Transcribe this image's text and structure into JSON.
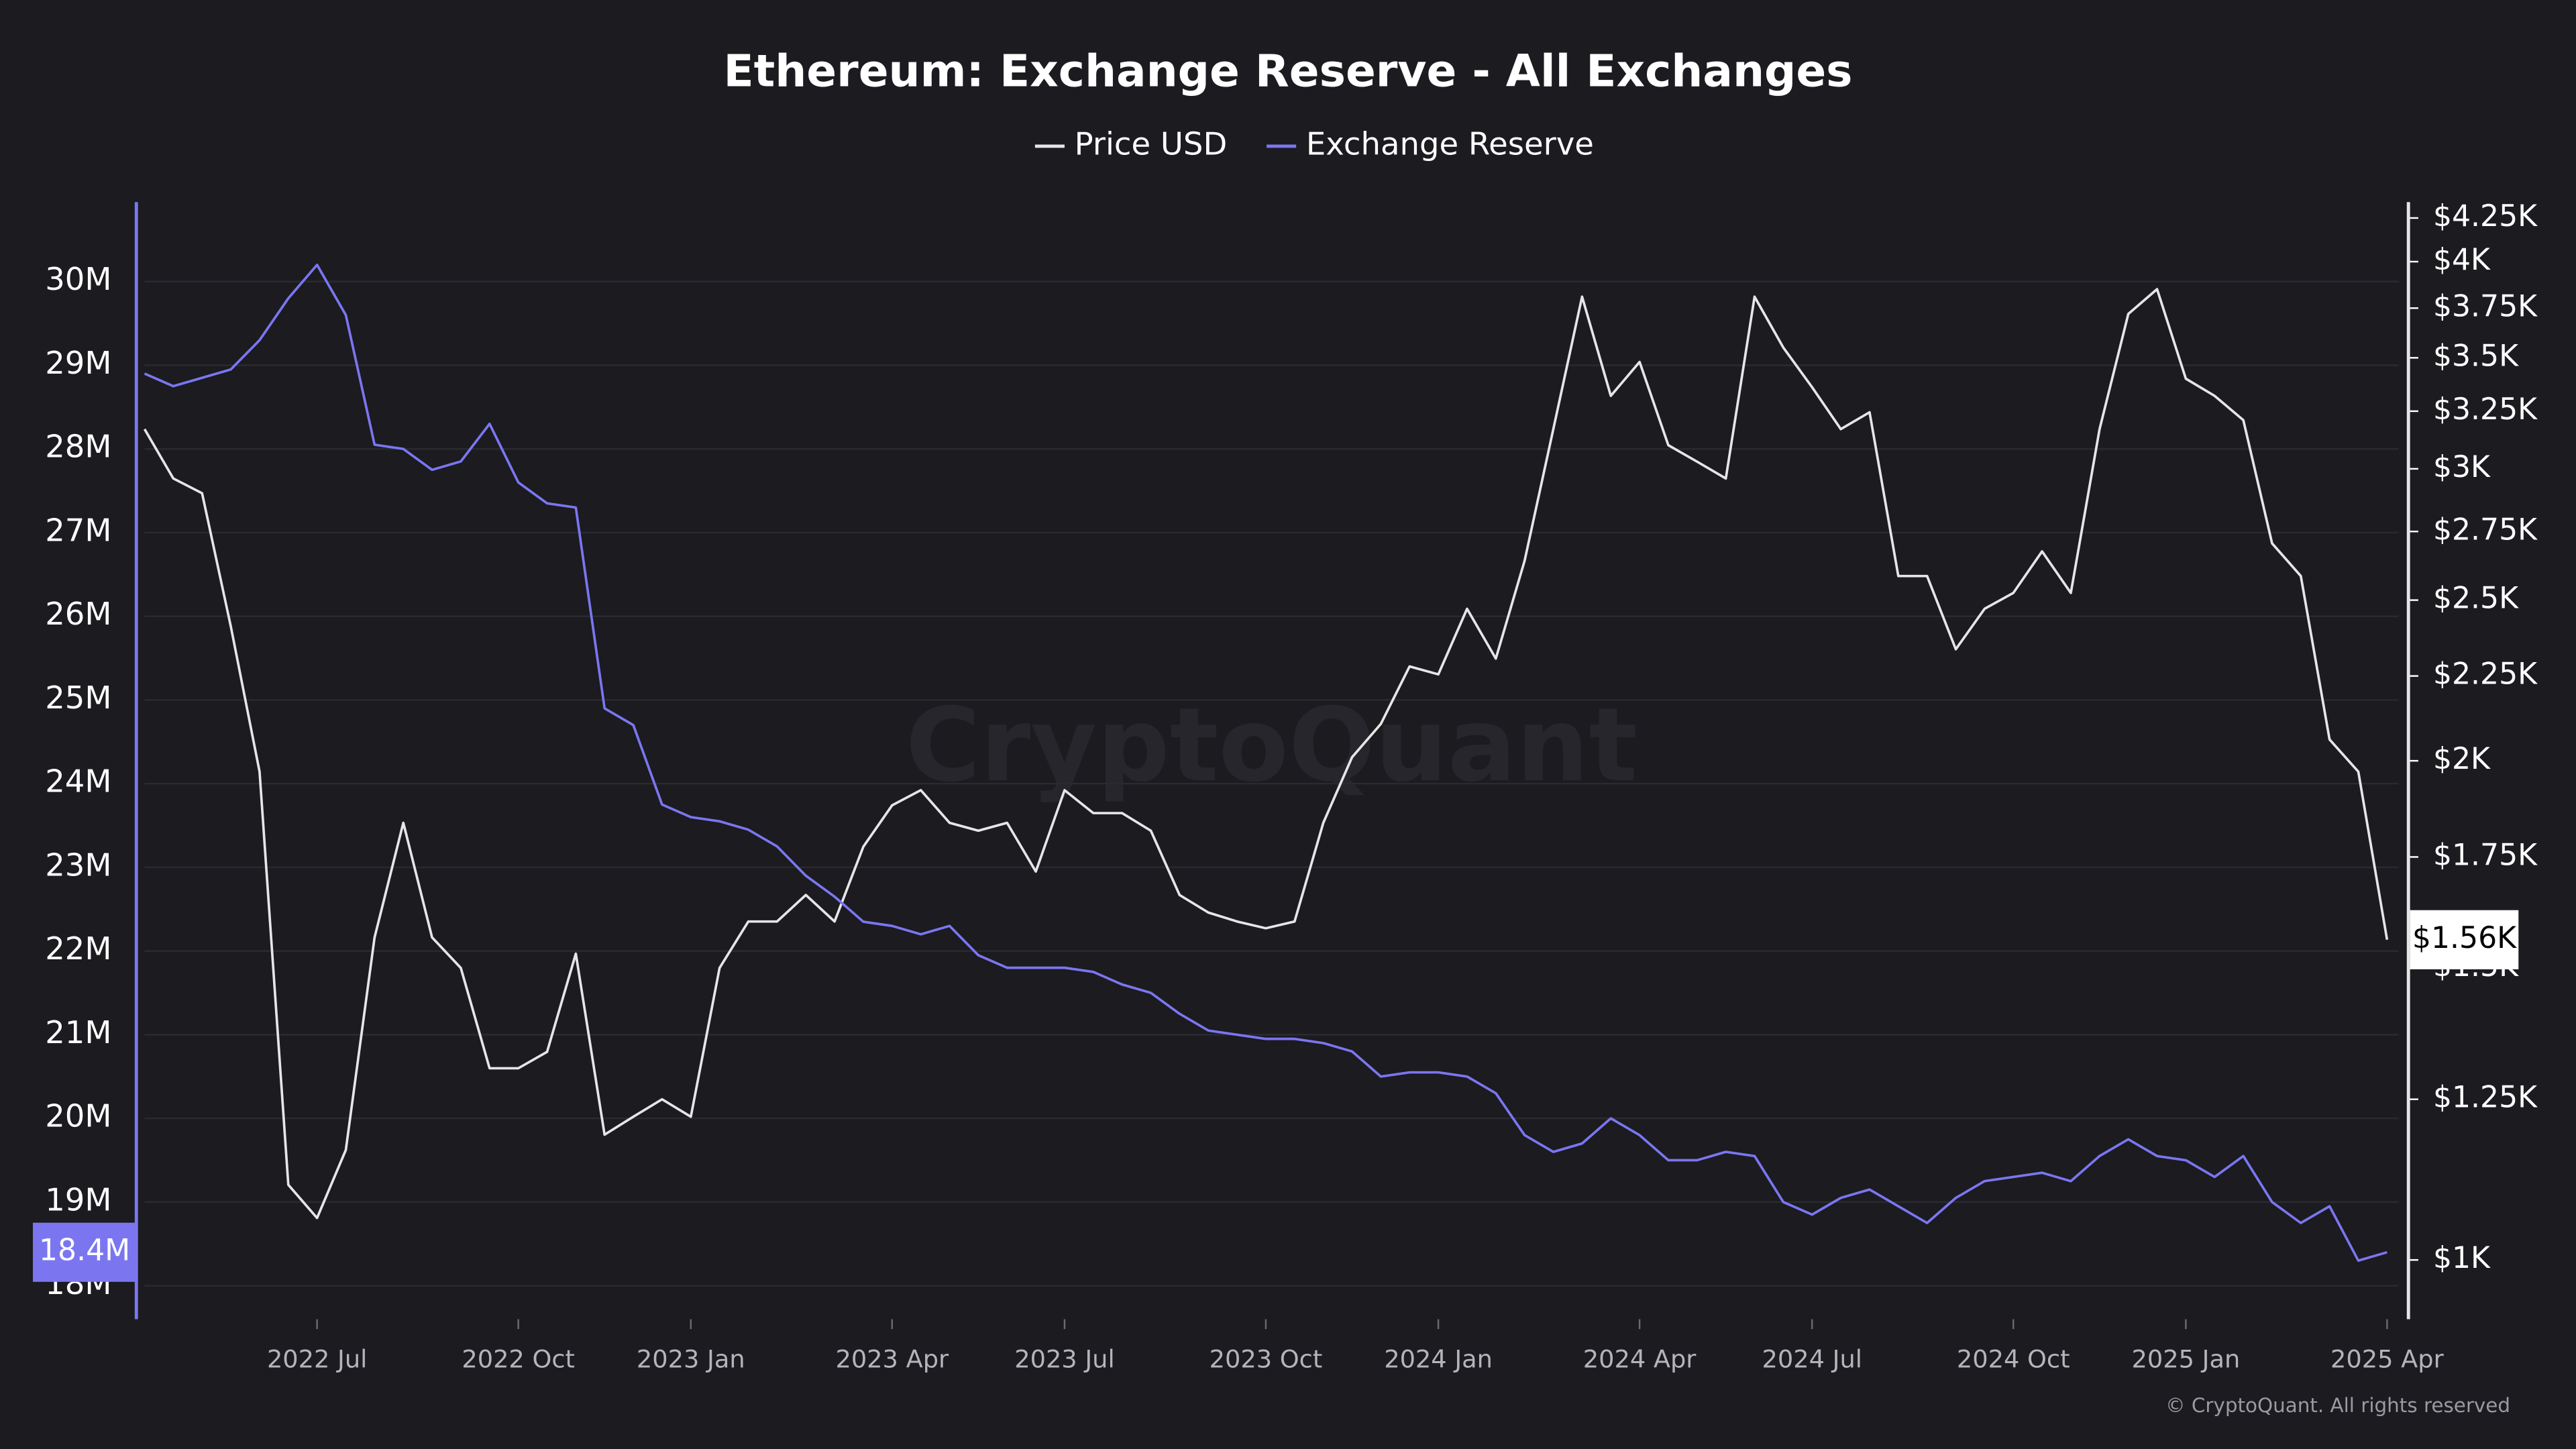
{
  "chart_data": {
    "type": "line",
    "title": "Ethereum: Exchange Reserve - All Exchanges",
    "watermark": "CryptoQuant",
    "credit": "© CryptoQuant. All rights reserved",
    "categories": [
      null,
      null,
      null,
      null,
      null,
      null,
      "2022 Jul",
      null,
      null,
      null,
      null,
      null,
      null,
      "2022 Oct",
      null,
      null,
      null,
      null,
      null,
      "2023 Jan",
      null,
      null,
      null,
      null,
      null,
      null,
      "2023 Apr",
      null,
      null,
      null,
      null,
      null,
      "2023 Jul",
      null,
      null,
      null,
      null,
      null,
      null,
      "2023 Oct",
      null,
      null,
      null,
      null,
      null,
      "2024 Jan",
      null,
      null,
      null,
      null,
      null,
      null,
      "2024 Apr",
      null,
      null,
      null,
      null,
      null,
      "2024 Jul",
      null,
      null,
      null,
      null,
      null,
      null,
      "2024 Oct",
      null,
      null,
      null,
      null,
      null,
      "2025 Jan",
      null,
      null,
      null,
      null,
      null,
      null,
      "2025 Apr"
    ],
    "series": [
      {
        "name": "Price USD",
        "color": "#e6e6e6",
        "axis": "y2",
        "values": [
          3170,
          2960,
          2900,
          2410,
          1970,
          1110,
          1060,
          1165,
          1565,
          1835,
          1565,
          1500,
          1305,
          1305,
          1335,
          1530,
          1190,
          1220,
          1250,
          1220,
          1500,
          1600,
          1600,
          1660,
          1600,
          1775,
          1880,
          1920,
          1835,
          1815,
          1835,
          1715,
          1920,
          1860,
          1860,
          1815,
          1660,
          1620,
          1600,
          1585,
          1600,
          1835,
          2010,
          2105,
          2280,
          2255,
          2470,
          2305,
          2640,
          3170,
          3810,
          3320,
          3480,
          3100,
          3030,
          2960,
          3810,
          3550,
          3360,
          3170,
          3245,
          2585,
          2585,
          2335,
          2470,
          2525,
          2675,
          2525,
          3170,
          3720,
          3850,
          3400,
          3320,
          3210,
          2705,
          2585,
          2060,
          1970,
          1560
        ],
        "value_labels": [
          null,
          null,
          null,
          null,
          null,
          null,
          null,
          null,
          null,
          null,
          null,
          null,
          null,
          null,
          null,
          null,
          null,
          null,
          null,
          null,
          null,
          null,
          null,
          null,
          null,
          null,
          null,
          null,
          null,
          null,
          null,
          null,
          null,
          null,
          null,
          null,
          null,
          null,
          null,
          null,
          null,
          null,
          null,
          null,
          null,
          null,
          null,
          null,
          null,
          null,
          null,
          null,
          null,
          null,
          null,
          null,
          null,
          null,
          null,
          null,
          null,
          null,
          null,
          null,
          null,
          null,
          null,
          null,
          null,
          null,
          null,
          null,
          null,
          null,
          null,
          null,
          null,
          null,
          "$1.56K"
        ]
      },
      {
        "name": "Exchange Reserve",
        "color": "#7b76f0",
        "axis": "y",
        "values": [
          28900000,
          28750000,
          28850000,
          28950000,
          29300000,
          29800000,
          30200000,
          29600000,
          28050000,
          28000000,
          27750000,
          27850000,
          28300000,
          27600000,
          27350000,
          27300000,
          24900000,
          24700000,
          23750000,
          23600000,
          23550000,
          23450000,
          23250000,
          22900000,
          22650000,
          22350000,
          22300000,
          22200000,
          22300000,
          21950000,
          21800000,
          21800000,
          21800000,
          21750000,
          21600000,
          21500000,
          21250000,
          21050000,
          21000000,
          20950000,
          20950000,
          20900000,
          20800000,
          20500000,
          20550000,
          20550000,
          20500000,
          20300000,
          19800000,
          19600000,
          19700000,
          20000000,
          19800000,
          19500000,
          19500000,
          19600000,
          19550000,
          19000000,
          18850000,
          19050000,
          19150000,
          18950000,
          18750000,
          19050000,
          19250000,
          19300000,
          19350000,
          19250000,
          19550000,
          19750000,
          19550000,
          19500000,
          19300000,
          19550000,
          19000000,
          18750000,
          18950000,
          18300000,
          18400000
        ],
        "value_labels": [
          null,
          null,
          null,
          null,
          null,
          null,
          null,
          null,
          null,
          null,
          null,
          null,
          null,
          null,
          null,
          null,
          null,
          null,
          null,
          null,
          null,
          null,
          null,
          null,
          null,
          null,
          null,
          null,
          null,
          null,
          null,
          null,
          null,
          null,
          null,
          null,
          null,
          null,
          null,
          null,
          null,
          null,
          null,
          null,
          null,
          null,
          null,
          null,
          null,
          null,
          null,
          null,
          null,
          null,
          null,
          null,
          null,
          null,
          null,
          null,
          null,
          null,
          null,
          null,
          null,
          null,
          null,
          null,
          null,
          null,
          null,
          null,
          null,
          null,
          null,
          null,
          null,
          null,
          "18.4M"
        ]
      }
    ],
    "ylim": [
      17600000,
      30950000
    ],
    "yticks": [
      {
        "value": 18000000,
        "label": "18M"
      },
      {
        "value": 19000000,
        "label": "19M"
      },
      {
        "value": 20000000,
        "label": "20M"
      },
      {
        "value": 21000000,
        "label": "21M"
      },
      {
        "value": 22000000,
        "label": "22M"
      },
      {
        "value": 23000000,
        "label": "23M"
      },
      {
        "value": 24000000,
        "label": "24M"
      },
      {
        "value": 25000000,
        "label": "25M"
      },
      {
        "value": 26000000,
        "label": "26M"
      },
      {
        "value": 27000000,
        "label": "27M"
      },
      {
        "value": 28000000,
        "label": "28M"
      },
      {
        "value": 29000000,
        "label": "29M"
      },
      {
        "value": 30000000,
        "label": "30M"
      }
    ],
    "y2lim": [
      921,
      4345
    ],
    "y2scale": "log",
    "y2ticks": [
      {
        "value": 1000,
        "label": "$1K"
      },
      {
        "value": 1250,
        "label": "$1.25K"
      },
      {
        "value": 1500,
        "label": "$1.5K"
      },
      {
        "value": 1750,
        "label": "$1.75K"
      },
      {
        "value": 2000,
        "label": "$2K"
      },
      {
        "value": 2250,
        "label": "$2.25K"
      },
      {
        "value": 2500,
        "label": "$2.5K"
      },
      {
        "value": 2750,
        "label": "$2.75K"
      },
      {
        "value": 3000,
        "label": "$3K"
      },
      {
        "value": 3250,
        "label": "$3.25K"
      },
      {
        "value": 3500,
        "label": "$3.5K"
      },
      {
        "value": 3750,
        "label": "$3.75K"
      },
      {
        "value": 4000,
        "label": "$4K"
      },
      {
        "value": 4250,
        "label": "$4.25K"
      }
    ],
    "grid": true,
    "legend": "top"
  }
}
